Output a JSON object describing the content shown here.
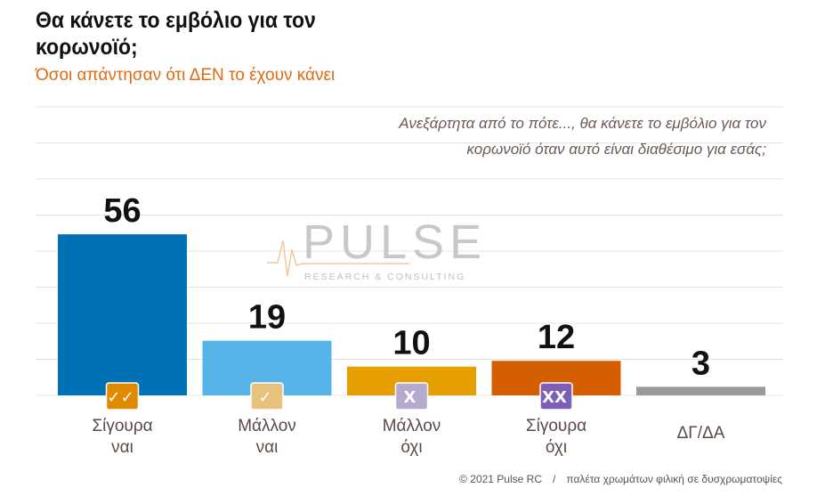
{
  "title": "Θα κάνετε το εμβόλιο για τον κορωνοϊό;",
  "subtitle": "Όσοι απάντησαν ότι ΔΕΝ το έχουν κάνει",
  "question": "Ανεξάρτητα από το πότε..., θα κάνετε το εμβόλιο για τον κορωνοϊό όταν αυτό είναι διαθέσιμο για εσάς;",
  "watermark": {
    "brand": "PULSE",
    "tagline": "RESEARCH & CONSULTING"
  },
  "footer": {
    "copyright": "© 2021 Pulse RC",
    "separator": "/",
    "note": "παλέτα χρωμάτων φιλική σε δυσχρωματοψίες"
  },
  "chart_data": {
    "type": "bar",
    "categories": [
      [
        "Σίγουρα",
        "ναι"
      ],
      [
        "Μάλλον",
        "ναι"
      ],
      [
        "Μάλλον",
        "όχι"
      ],
      [
        "Σίγουρα",
        "όχι"
      ],
      [
        "ΔΓ/ΔΑ"
      ]
    ],
    "values": [
      56,
      19,
      10,
      12,
      3
    ],
    "colors": [
      "#0071b4",
      "#56b4e9",
      "#e69f00",
      "#d55e00",
      "#9a9a9a"
    ],
    "icons": [
      {
        "glyph": "✓✓",
        "color": "#e08a00",
        "name": "double-check-icon"
      },
      {
        "glyph": "✓",
        "color": "#e6c27c",
        "name": "check-icon"
      },
      {
        "glyph": "X",
        "color": "#b6a9cf",
        "name": "x-icon"
      },
      {
        "glyph": "XX",
        "color": "#7d5fb7",
        "name": "double-x-icon"
      },
      null
    ],
    "grid": true,
    "ylim": [
      0,
      60
    ]
  }
}
